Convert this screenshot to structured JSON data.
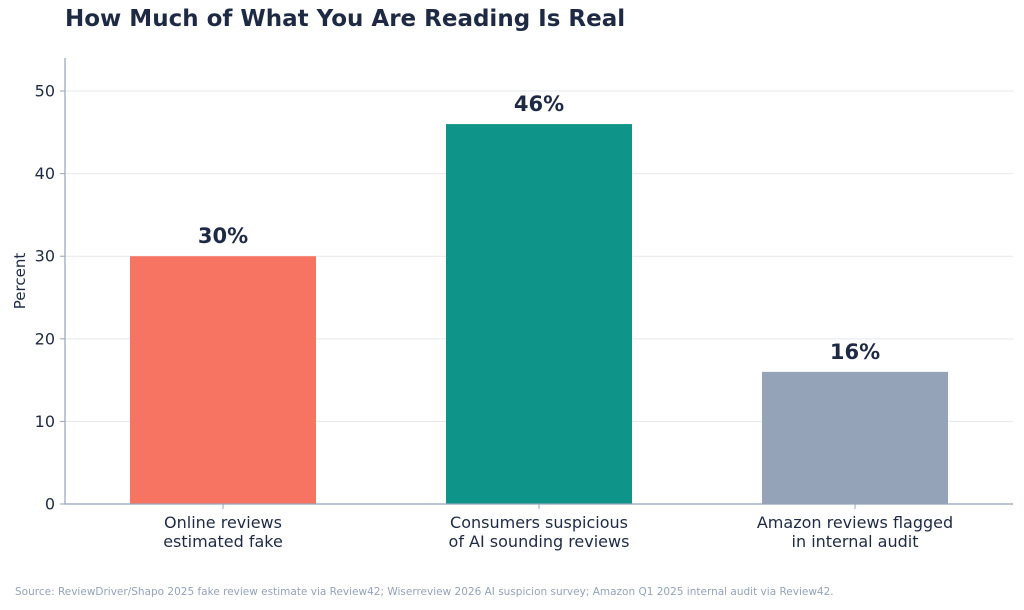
{
  "title": "How Much of What You Are Reading Is Real",
  "source": "Source: ReviewDriver/Shapo 2025 fake review estimate via Review42; Wiserreview 2026 AI suspicion survey; Amazon Q1 2025 internal audit via Review42.",
  "colors": {
    "text": "#1e2a44",
    "axis": "#94a3b8",
    "grid": "#e5e7eb"
  },
  "chart_data": {
    "type": "bar",
    "title": "How Much of What You Are Reading Is Real",
    "xlabel": "",
    "ylabel": "Percent",
    "ylim": [
      0,
      54
    ],
    "yticks": [
      0,
      10,
      20,
      30,
      40,
      50
    ],
    "grid": true,
    "categories": [
      [
        "Online reviews",
        "estimated fake"
      ],
      [
        "Consumers suspicious",
        "of AI sounding reviews"
      ],
      [
        "Amazon reviews flagged",
        "in internal audit"
      ]
    ],
    "values": [
      30,
      46,
      16
    ],
    "value_labels": [
      "30%",
      "46%",
      "16%"
    ],
    "bar_colors": [
      "#f87462",
      "#0e9488",
      "#94a3b8"
    ]
  }
}
